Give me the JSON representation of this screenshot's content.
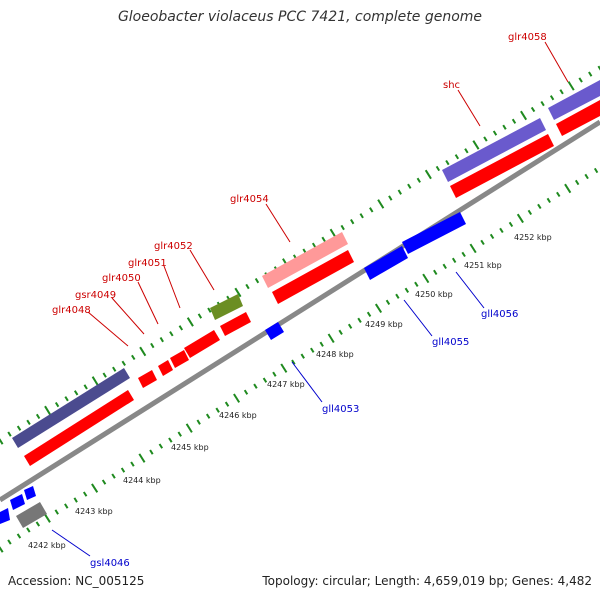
{
  "title": "Gloeobacter violaceus PCC 7421, complete genome",
  "footer": {
    "accession": "Accession: NC_005125",
    "topology": "Topology: circular; Length: 4,659,019 bp; Genes: 4,482"
  },
  "colors": {
    "forward_cds": "#ff0000",
    "reverse_cds": "#0000ff",
    "rna_gene": "#6b8e23",
    "pseudo_gene": "#ff9999",
    "feature_purple": "#6a5acd",
    "feature_dark": "#4b4b8f",
    "feature_gray": "#777777",
    "tick": "#1f8a1f"
  },
  "scale_labels": [
    "4242 kbp",
    "4243 kbp",
    "4244 kbp",
    "4245 kbp",
    "4246 kbp",
    "4247 kbp",
    "4248 kbp",
    "4249 kbp",
    "4250 kbp",
    "4251 kbp",
    "4252 kbp"
  ],
  "gene_labels": {
    "forward": [
      "glr4048",
      "gsr4049",
      "glr4050",
      "glr4051",
      "glr4052",
      "glr4054",
      "shc",
      "glr4058"
    ],
    "reverse": [
      "gsl4046",
      "gll4053",
      "gll4055",
      "gll4056"
    ]
  }
}
